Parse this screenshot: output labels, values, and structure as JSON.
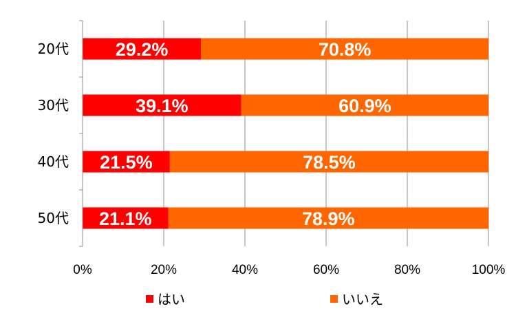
{
  "chart_data": {
    "type": "bar",
    "orientation": "horizontal",
    "stacked": true,
    "percent": true,
    "categories": [
      "20代",
      "30代",
      "40代",
      "50代"
    ],
    "series": [
      {
        "name": "はい",
        "color": "#ff0000",
        "values": [
          29.2,
          39.1,
          21.5,
          21.1
        ],
        "labels": [
          "29.2%",
          "39.1%",
          "21.5%",
          "21.1%"
        ]
      },
      {
        "name": "いいえ",
        "color": "#ff6600",
        "values": [
          70.8,
          60.9,
          78.5,
          78.9
        ],
        "labels": [
          "70.8%",
          "60.9%",
          "78.5%",
          "78.9%"
        ]
      }
    ],
    "xlim": [
      0,
      100
    ],
    "xticks": [
      0,
      20,
      40,
      60,
      80,
      100
    ],
    "xtick_labels": [
      "0%",
      "20%",
      "40%",
      "60%",
      "80%",
      "100%"
    ],
    "grid": true,
    "legend_position": "bottom"
  }
}
